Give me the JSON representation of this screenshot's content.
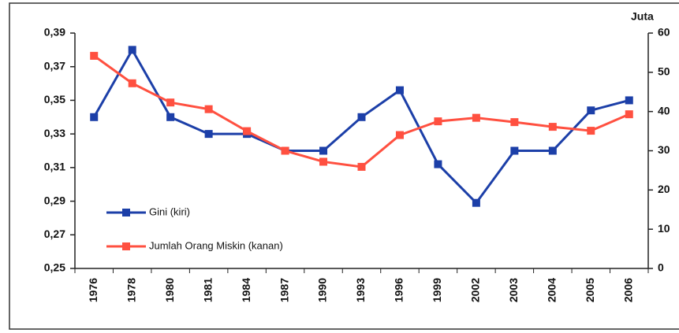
{
  "chart_data": {
    "type": "line",
    "y2_label": "Juta",
    "categories": [
      "1976",
      "1978",
      "1980",
      "1981",
      "1984",
      "1987",
      "1990",
      "1993",
      "1996",
      "1999",
      "2002",
      "2003",
      "2004",
      "2005",
      "2006"
    ],
    "series": [
      {
        "name": "Gini (kiri)",
        "color": "#1c3fa8",
        "values": [
          0.34,
          0.38,
          0.34,
          0.33,
          0.33,
          0.32,
          0.32,
          0.34,
          0.356,
          0.312,
          0.289,
          0.32,
          0.32,
          0.344,
          0.35
        ]
      },
      {
        "name": "Jumlah Orang Miskin (kanan)",
        "color": "#ff5040",
        "axis": "y2",
        "values": [
          54.2,
          47.2,
          42.3,
          40.6,
          35.0,
          30.0,
          27.2,
          25.9,
          34.0,
          37.5,
          38.4,
          37.3,
          36.1,
          35.1,
          39.3
        ]
      }
    ],
    "ylim": [
      0.25,
      0.39
    ],
    "yticks": [
      {
        "value": 0.25,
        "label": "0,25"
      },
      {
        "value": 0.27,
        "label": "0,27"
      },
      {
        "value": 0.29,
        "label": "0,29"
      },
      {
        "value": 0.31,
        "label": "0,31"
      },
      {
        "value": 0.33,
        "label": "0,33"
      },
      {
        "value": 0.35,
        "label": "0,35"
      },
      {
        "value": 0.37,
        "label": "0,37"
      },
      {
        "value": 0.39,
        "label": "0,39"
      }
    ],
    "y2lim": [
      0,
      60
    ],
    "y2ticks": [
      0,
      10,
      20,
      30,
      40,
      50,
      60
    ],
    "legend": "lower-left"
  }
}
